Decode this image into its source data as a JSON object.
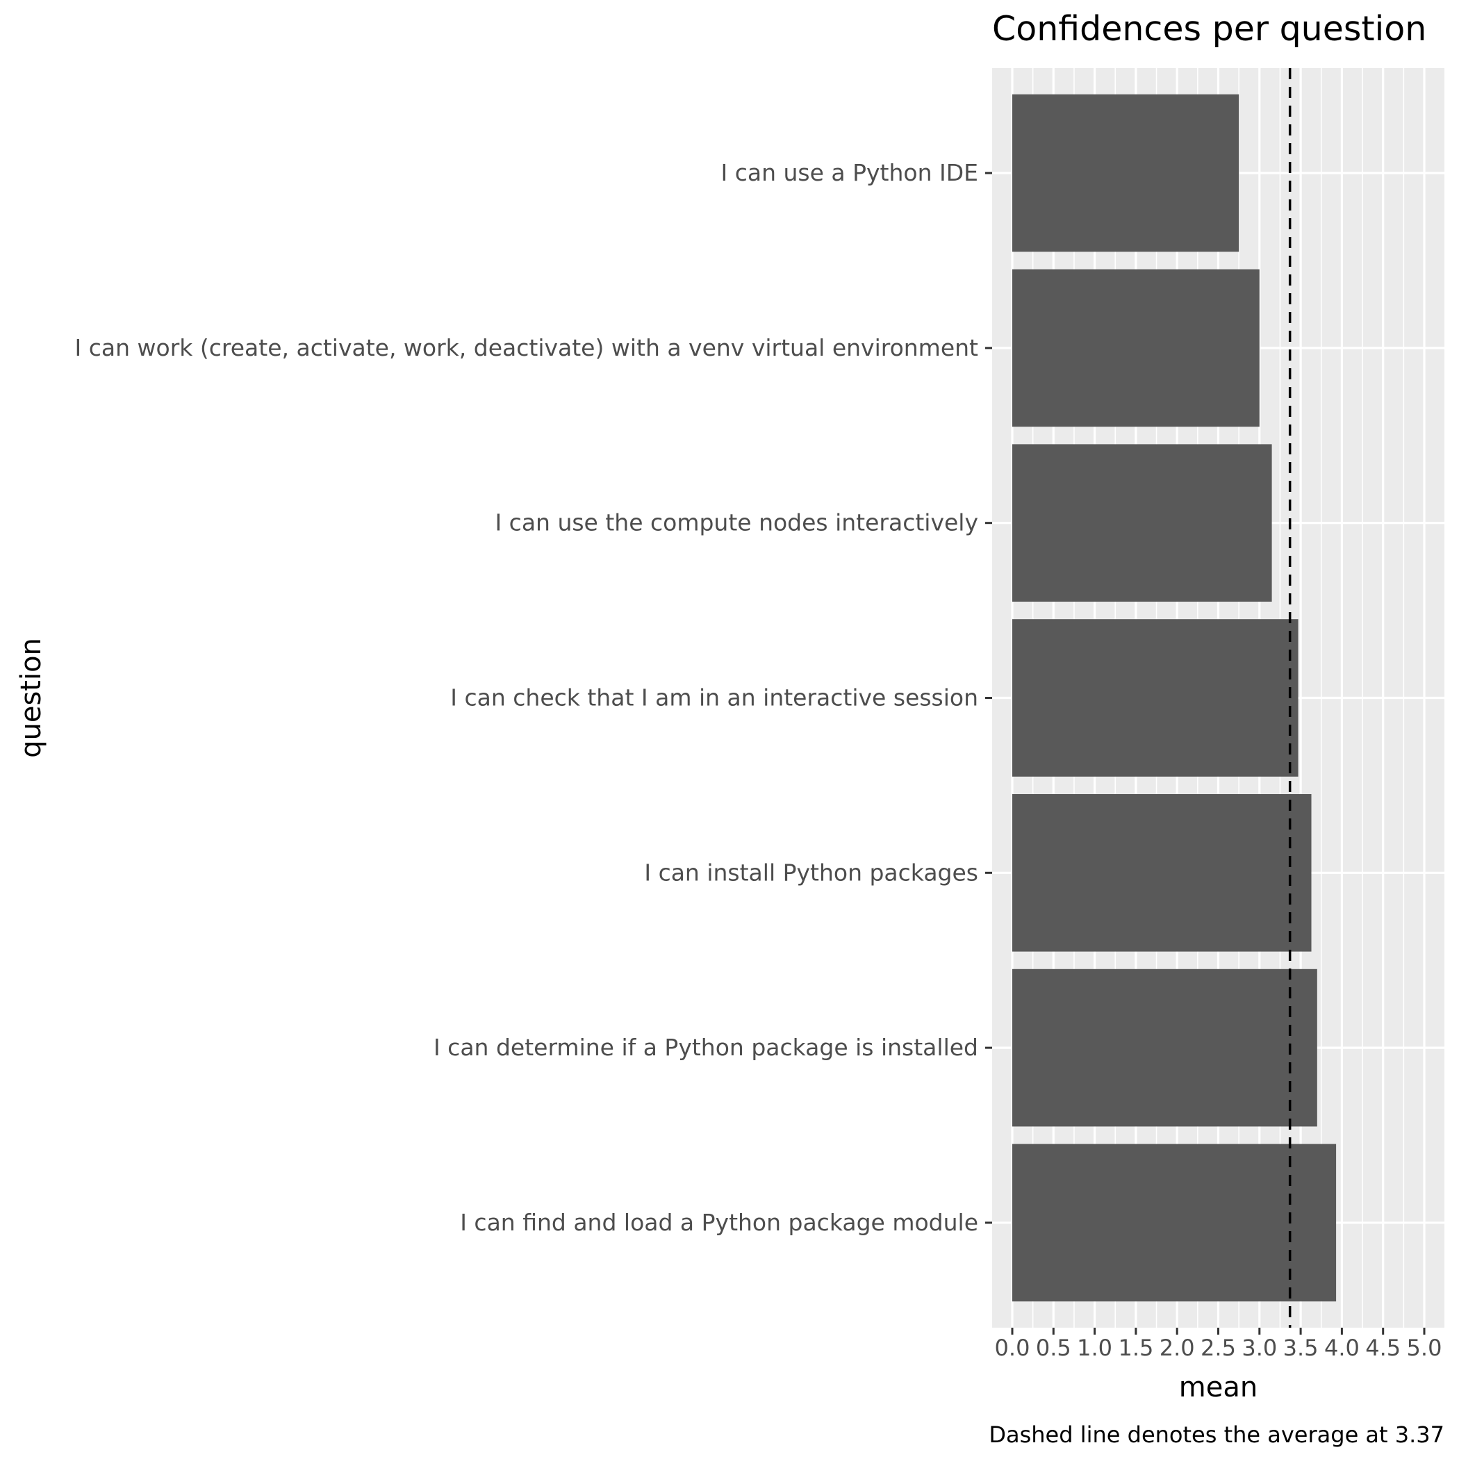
{
  "chart_data": {
    "type": "bar",
    "orientation": "horizontal",
    "title": "Confidences per question",
    "xlabel": "mean",
    "ylabel": "question",
    "caption": "Dashed line denotes the average at 3.37",
    "categories": [
      "I can use a Python IDE",
      "I can work (create, activate, work, deactivate) with a venv virtual environment",
      "I can use the compute nodes interactively",
      "I can check that I am in an interactive session",
      "I can install Python packages",
      "I can determine if a Python package is installed",
      "I can find and load a Python package module"
    ],
    "values": [
      2.75,
      3.0,
      3.15,
      3.47,
      3.63,
      3.7,
      3.93
    ],
    "average_line": 3.37,
    "xlim": [
      0,
      5.0
    ],
    "xticks": [
      0.0,
      0.5,
      1.0,
      1.5,
      2.0,
      2.5,
      3.0,
      3.5,
      4.0,
      4.5,
      5.0
    ],
    "xtick_labels": [
      "0.0",
      "0.5",
      "1.0",
      "1.5",
      "2.0",
      "2.5",
      "3.0",
      "3.5",
      "4.0",
      "4.5",
      "5.0"
    ],
    "grid": true,
    "colors": {
      "panel": "#ebebeb",
      "bar": "#595959",
      "grid": "#ffffff",
      "average_line": "#000000"
    }
  }
}
